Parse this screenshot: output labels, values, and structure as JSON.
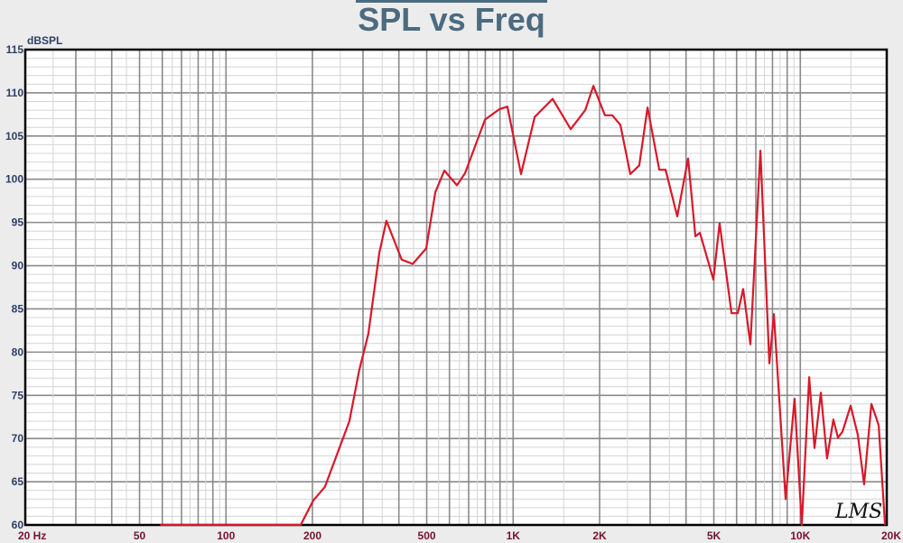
{
  "chart_data": {
    "type": "line",
    "title": "SPL vs Freq",
    "ylabel": "dBSPL",
    "xlabel": "Hz",
    "xscale": "log",
    "xlim": [
      20,
      20000
    ],
    "ylim": [
      60,
      115
    ],
    "grid": true,
    "watermark": "LMS",
    "yticks": [
      60,
      65,
      70,
      75,
      80,
      85,
      90,
      95,
      100,
      105,
      110,
      115
    ],
    "xticks": [
      {
        "v": 20,
        "label": "20  Hz"
      },
      {
        "v": 50,
        "label": "50"
      },
      {
        "v": 100,
        "label": "100"
      },
      {
        "v": 200,
        "label": "200"
      },
      {
        "v": 500,
        "label": "500"
      },
      {
        "v": 1000,
        "label": "1K"
      },
      {
        "v": 2000,
        "label": "2K"
      },
      {
        "v": 5000,
        "label": "5K"
      },
      {
        "v": 10000,
        "label": "10K"
      },
      {
        "v": 20000,
        "label": "20K"
      }
    ],
    "series": [
      {
        "name": "SPL",
        "color": "#d8182a",
        "points": [
          [
            59,
            60
          ],
          [
            182,
            60
          ],
          [
            201,
            62.8
          ],
          [
            221,
            64.4
          ],
          [
            269,
            72.0
          ],
          [
            291,
            77.9
          ],
          [
            313,
            82.1
          ],
          [
            342,
            91.5
          ],
          [
            362,
            95.2
          ],
          [
            409,
            90.7
          ],
          [
            447,
            90.2
          ],
          [
            498,
            92.0
          ],
          [
            536,
            98.5
          ],
          [
            576,
            101.0
          ],
          [
            637,
            99.3
          ],
          [
            680,
            100.7
          ],
          [
            798,
            106.9
          ],
          [
            895,
            108.1
          ],
          [
            955,
            108.4
          ],
          [
            1065,
            100.6
          ],
          [
            1188,
            107.2
          ],
          [
            1372,
            109.3
          ],
          [
            1586,
            105.8
          ],
          [
            1782,
            108.0
          ],
          [
            1902,
            110.8
          ],
          [
            2088,
            107.4
          ],
          [
            2213,
            107.4
          ],
          [
            2362,
            106.3
          ],
          [
            2558,
            100.6
          ],
          [
            2749,
            101.6
          ],
          [
            2937,
            108.3
          ],
          [
            3228,
            101.1
          ],
          [
            3396,
            101.1
          ],
          [
            3728,
            95.7
          ],
          [
            4065,
            102.4
          ],
          [
            4311,
            93.4
          ],
          [
            4470,
            93.8
          ],
          [
            4982,
            88.4
          ],
          [
            5237,
            94.9
          ],
          [
            5760,
            84.5
          ],
          [
            6058,
            84.5
          ],
          [
            6325,
            87.3
          ],
          [
            6703,
            80.9
          ],
          [
            7261,
            103.3
          ],
          [
            7800,
            78.7
          ],
          [
            8092,
            84.4
          ],
          [
            8889,
            63.0
          ],
          [
            9551,
            74.6
          ],
          [
            10120,
            60
          ],
          [
            10737,
            77.1
          ],
          [
            11203,
            68.9
          ],
          [
            11789,
            75.3
          ],
          [
            12397,
            67.7
          ],
          [
            13040,
            72.2
          ],
          [
            13530,
            70.1
          ],
          [
            14029,
            70.8
          ],
          [
            14970,
            73.8
          ],
          [
            15860,
            70.4
          ],
          [
            16680,
            64.7
          ],
          [
            17690,
            74.0
          ],
          [
            18330,
            72.5
          ],
          [
            18750,
            71.5
          ],
          [
            19720,
            60
          ]
        ]
      }
    ]
  }
}
